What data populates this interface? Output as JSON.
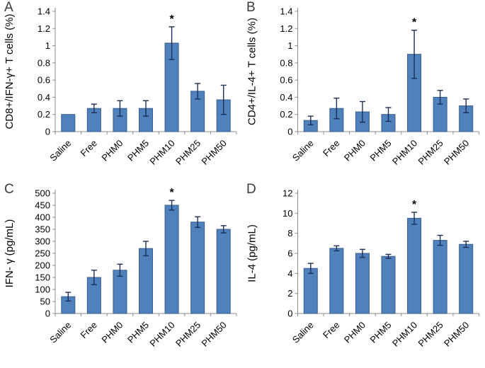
{
  "figure": {
    "background": "#ffffff",
    "bar_color": "#4f81bd",
    "bar_border": "#385d8a",
    "error_color": "#1c2f54",
    "axis_color": "#8c8c8c",
    "text_color": "#000000",
    "sig_marker": "*"
  },
  "categories": [
    "Saline",
    "Free",
    "PHM0",
    "PHM5",
    "PHM10",
    "PHM25",
    "PHM50"
  ],
  "chart_data": [
    {
      "type": "bar",
      "panel": "A",
      "title": "",
      "xlabel": "",
      "ylabel": "CD8+/IFN-γ+ T cells (%)",
      "ylim": [
        0,
        1.4
      ],
      "yticks": [
        0,
        0.2,
        0.4,
        0.6,
        0.8,
        1,
        1.2,
        1.4
      ],
      "ytick_labels": [
        "0",
        "0.2",
        "0.4",
        "0.6",
        "0.8",
        "1",
        "1.2",
        "1.4"
      ],
      "values": [
        0.2,
        0.27,
        0.27,
        0.27,
        1.03,
        0.47,
        0.37
      ],
      "errors": [
        0,
        0.05,
        0.09,
        0.09,
        0.19,
        0.09,
        0.17
      ],
      "sig_index": 4,
      "grid": false,
      "legend": false,
      "xtick_rotation_deg": -45
    },
    {
      "type": "bar",
      "panel": "B",
      "title": "",
      "xlabel": "",
      "ylabel": "CD4+/IL-4+ T cells (%)",
      "ylim": [
        0,
        1.4
      ],
      "yticks": [
        0,
        0.2,
        0.4,
        0.6,
        0.8,
        1,
        1.2,
        1.4
      ],
      "ytick_labels": [
        "0",
        "0.2",
        "0.4",
        "0.6",
        "0.8",
        "1",
        "1.2",
        "1.4"
      ],
      "values": [
        0.13,
        0.27,
        0.23,
        0.2,
        0.9,
        0.4,
        0.3
      ],
      "errors": [
        0.05,
        0.12,
        0.12,
        0.08,
        0.28,
        0.08,
        0.08
      ],
      "sig_index": 4,
      "grid": false,
      "legend": false,
      "xtick_rotation_deg": -45
    },
    {
      "type": "bar",
      "panel": "C",
      "title": "",
      "xlabel": "",
      "ylabel": "IFN- γ (pg/mL)",
      "ylim": [
        0,
        500
      ],
      "yticks": [
        0,
        50,
        100,
        150,
        200,
        250,
        300,
        350,
        400,
        450,
        500
      ],
      "ytick_labels": [
        "0",
        "50",
        "100",
        "150",
        "200",
        "250",
        "300",
        "350",
        "400",
        "450",
        "500"
      ],
      "values": [
        70,
        150,
        180,
        270,
        450,
        380,
        350
      ],
      "errors": [
        18,
        30,
        25,
        30,
        20,
        22,
        15
      ],
      "sig_index": 4,
      "grid": false,
      "legend": false,
      "xtick_rotation_deg": -45
    },
    {
      "type": "bar",
      "panel": "D",
      "title": "",
      "xlabel": "",
      "ylabel": "IL-4 (pg/mL)",
      "ylim": [
        0,
        12
      ],
      "yticks": [
        0,
        2,
        4,
        6,
        8,
        10,
        12
      ],
      "ytick_labels": [
        "0",
        "2",
        "4",
        "6",
        "8",
        "10",
        "12"
      ],
      "values": [
        4.5,
        6.5,
        6.0,
        5.7,
        9.5,
        7.3,
        6.9
      ],
      "errors": [
        0.5,
        0.25,
        0.4,
        0.2,
        0.6,
        0.5,
        0.3
      ],
      "sig_index": 4,
      "grid": false,
      "legend": false,
      "xtick_rotation_deg": -45
    }
  ]
}
